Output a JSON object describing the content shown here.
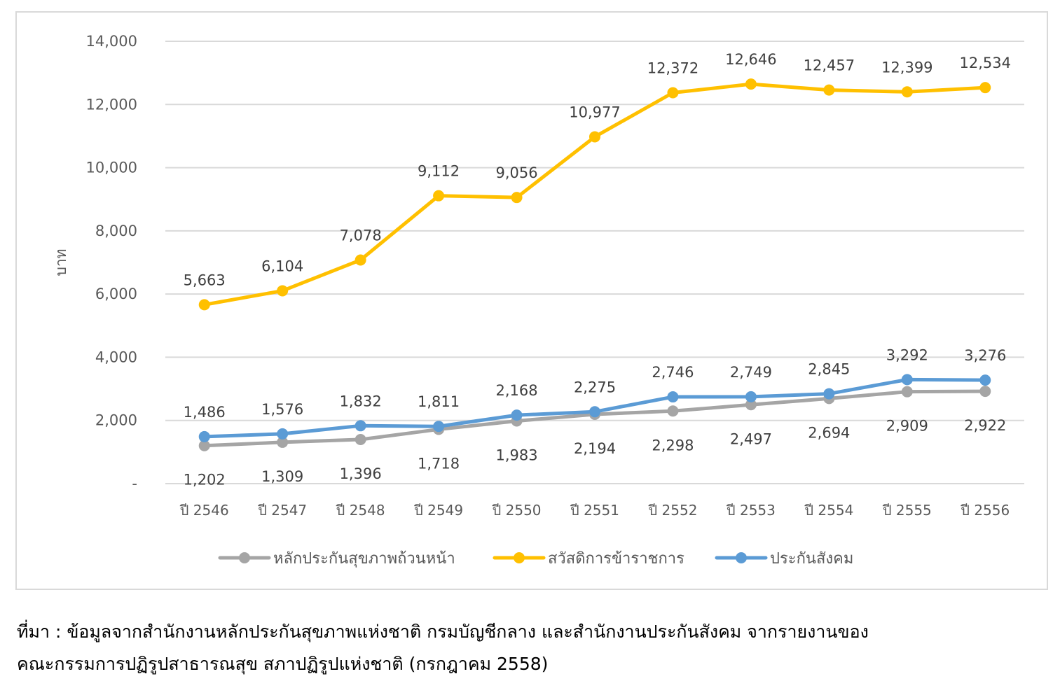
{
  "chart_data": {
    "type": "line",
    "title": "",
    "xlabel": "",
    "ylabel": "บาท",
    "categories": [
      "ปี 2546",
      "ปี 2547",
      "ปี 2548",
      "ปี 2549",
      "ปี 2550",
      "ปี 2551",
      "ปี 2552",
      "ปี 2553",
      "ปี 2554",
      "ปี 2555",
      "ปี 2556"
    ],
    "ylim": [
      0,
      14000
    ],
    "y_ticks": [
      {
        "value": 0,
        "label": "-"
      },
      {
        "value": 2000,
        "label": "2,000"
      },
      {
        "value": 4000,
        "label": "4,000"
      },
      {
        "value": 6000,
        "label": "6,000"
      },
      {
        "value": 8000,
        "label": "8,000"
      },
      {
        "value": 10000,
        "label": "10,000"
      },
      {
        "value": 12000,
        "label": "12,000"
      },
      {
        "value": 14000,
        "label": "14,000"
      }
    ],
    "grid": true,
    "legend_position": "bottom",
    "series": [
      {
        "name": "หลักประกันสุขภาพถ้วนหน้า",
        "color": "#a5a5a5",
        "label_position": "below",
        "values": [
          1202,
          1309,
          1396,
          1718,
          1983,
          2194,
          2298,
          2497,
          2694,
          2909,
          2922
        ],
        "labels": [
          "1,202",
          "1,309",
          "1,396",
          "1,718",
          "1,983",
          "2,194",
          "2,298",
          "2,497",
          "2,694",
          "2,909",
          "2,922"
        ]
      },
      {
        "name": "สวัสดิการข้าราชการ",
        "color": "#ffc000",
        "label_position": "above",
        "values": [
          5663,
          6104,
          7078,
          9112,
          9056,
          10977,
          12372,
          12646,
          12457,
          12399,
          12534
        ],
        "labels": [
          "5,663",
          "6,104",
          "7,078",
          "9,112",
          "9,056",
          "10,977",
          "12,372",
          "12,646",
          "12,457",
          "12,399",
          "12,534"
        ]
      },
      {
        "name": "ประกันสังคม",
        "color": "#5b9bd5",
        "label_position": "above",
        "values": [
          1486,
          1576,
          1832,
          1811,
          2168,
          2275,
          2746,
          2749,
          2845,
          3292,
          3276
        ],
        "labels": [
          "1,486",
          "1,576",
          "1,832",
          "1,811",
          "2,168",
          "2,275",
          "2,746",
          "2,749",
          "2,845",
          "3,292",
          "3,276"
        ]
      }
    ]
  },
  "source": {
    "line1": "ที่มา : ข้อมูลจากสำนักงานหลักประกันสุขภาพแห่งชาติ กรมบัญชีกลาง และสำนักงานประกันสังคม จากรายงานของ",
    "line2": "คณะกรรมการปฏิรูปสาธารณสุข สภาปฏิรูปแห่งชาติ (กรกฎาคม 2558)"
  }
}
